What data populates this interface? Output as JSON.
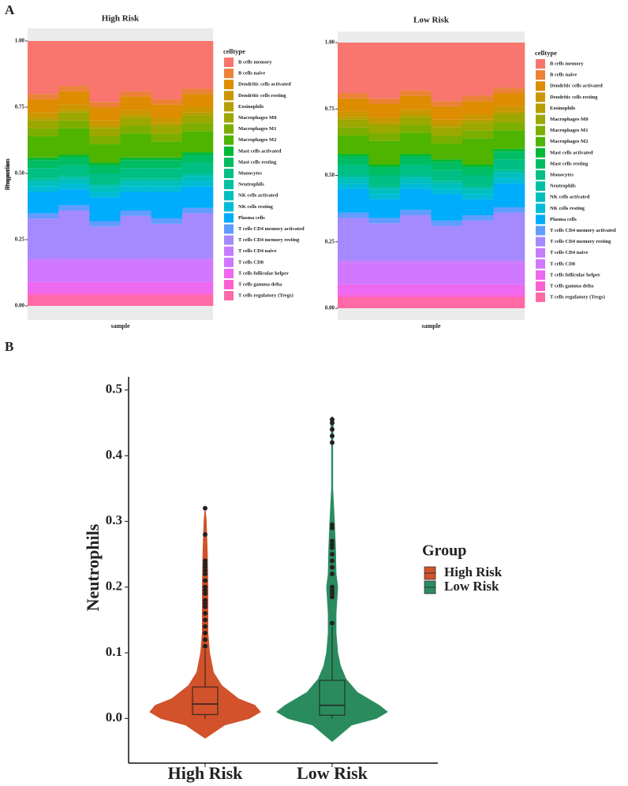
{
  "panel_labels": [
    "A",
    "B"
  ],
  "chart_data": [
    {
      "type": "stacked_bar",
      "title": "High Risk",
      "x_label": "sample",
      "y_label": "Proportion",
      "legend_title": "celltype",
      "categories": [
        null,
        null,
        null,
        null,
        null,
        null
      ],
      "ylim": [
        0,
        1
      ],
      "yticks": [
        {
          "value": 0,
          "label": "0.00"
        },
        0.25,
        {
          "value": 0.5,
          "label": "0.50"
        },
        0.75,
        {
          "value": 1,
          "label": "1.00"
        }
      ],
      "series": [
        {
          "name": "B cells memory",
          "color": "#F8766D",
          "values": [
            0.2,
            0.17,
            0.23,
            0.19,
            0.22,
            0.18
          ]
        },
        {
          "name": "B cells naive",
          "color": "#EC8239",
          "values": [
            0.02,
            0.02,
            0.02,
            0.02,
            0.02,
            0.02
          ]
        },
        {
          "name": "Dendritic cells activated",
          "color": "#DE8C00",
          "values": [
            0.05,
            0.05,
            0.05,
            0.05,
            0.05,
            0.05
          ]
        },
        {
          "name": "Dendritic cells resting",
          "color": "#CC9600",
          "values": [
            0.02,
            0.02,
            0.02,
            0.02,
            0.02,
            0.02
          ]
        },
        {
          "name": "Eosinophils",
          "color": "#B69F00",
          "values": [
            0.01,
            0.01,
            0.01,
            0.01,
            0.01,
            0.01
          ]
        },
        {
          "name": "Macrophages M0",
          "color": "#9CA700",
          "values": [
            0.03,
            0.03,
            0.03,
            0.03,
            0.03,
            0.03
          ]
        },
        {
          "name": "Macrophages M1",
          "color": "#7CAE00",
          "values": [
            0.03,
            0.03,
            0.03,
            0.03,
            0.03,
            0.03
          ]
        },
        {
          "name": "Macrophages M2",
          "color": "#4EB400",
          "values": [
            0.08,
            0.1,
            0.07,
            0.09,
            0.06,
            0.08
          ]
        },
        {
          "name": "Mast cells activated",
          "color": "#00B935",
          "values": [
            0.01,
            0.01,
            0.01,
            0.01,
            0.01,
            0.01
          ]
        },
        {
          "name": "Mast cells resting",
          "color": "#00BC62",
          "values": [
            0.03,
            0.03,
            0.03,
            0.03,
            0.03,
            0.03
          ]
        },
        {
          "name": "Monocytes",
          "color": "#00BF84",
          "values": [
            0.04,
            0.04,
            0.04,
            0.04,
            0.04,
            0.04
          ]
        },
        {
          "name": "Neutrophils",
          "color": "#00C0A3",
          "values": [
            0.01,
            0.01,
            0.01,
            0.01,
            0.01,
            0.01
          ]
        },
        {
          "name": "NK cells activated",
          "color": "#00C0BE",
          "values": [
            0.02,
            0.02,
            0.02,
            0.02,
            0.02,
            0.02
          ]
        },
        {
          "name": "NK cells resting",
          "color": "#00BCD6",
          "values": [
            0.02,
            0.02,
            0.02,
            0.02,
            0.02,
            0.02
          ]
        },
        {
          "name": "Plasma cells",
          "color": "#00ACFC",
          "values": [
            0.08,
            0.06,
            0.09,
            0.07,
            0.1,
            0.08
          ]
        },
        {
          "name": "T cells CD4 memory activated",
          "color": "#619CFF",
          "values": [
            0.02,
            0.02,
            0.02,
            0.02,
            0.02,
            0.02
          ]
        },
        {
          "name": "T cells CD4 memory resting",
          "color": "#A58AFF",
          "values": [
            0.15,
            0.18,
            0.12,
            0.16,
            0.13,
            0.17
          ]
        },
        {
          "name": "T cells CD4 naive",
          "color": "#C77CFF",
          "values": [
            0.01,
            0.01,
            0.01,
            0.01,
            0.01,
            0.01
          ]
        },
        {
          "name": "T cells CD8",
          "color": "#D078FF",
          "values": [
            0.08,
            0.08,
            0.08,
            0.08,
            0.08,
            0.08
          ]
        },
        {
          "name": "T cells follicular helper",
          "color": "#EE68F0",
          "values": [
            0.04,
            0.04,
            0.04,
            0.04,
            0.04,
            0.04
          ]
        },
        {
          "name": "T cells gamma delta",
          "color": "#FD61D1",
          "values": [
            0.01,
            0.01,
            0.01,
            0.01,
            0.01,
            0.01
          ]
        },
        {
          "name": "T cells regulatory (Tregs)",
          "color": "#FF6AA6",
          "values": [
            0.04,
            0.04,
            0.04,
            0.04,
            0.04,
            0.04
          ]
        }
      ]
    },
    {
      "type": "stacked_bar",
      "title": "Low Risk",
      "x_label": "sample",
      "y_label": "Proportion",
      "legend_title": "celltype",
      "categories": [
        null,
        null,
        null,
        null,
        null,
        null
      ],
      "ylim": [
        0,
        1
      ],
      "yticks": [
        {
          "value": 0,
          "label": "0.00"
        },
        0.25,
        {
          "value": 0.5,
          "label": "0.50"
        },
        0.75,
        {
          "value": 1,
          "label": "1.00"
        }
      ],
      "series": [
        {
          "name": "B cells memory",
          "color": "#F8766D",
          "values": [
            0.19,
            0.21,
            0.18,
            0.22,
            0.2,
            0.17
          ]
        },
        {
          "name": "B cells naive",
          "color": "#EC8239",
          "values": [
            0.02,
            0.02,
            0.02,
            0.02,
            0.02,
            0.02
          ]
        },
        {
          "name": "Dendritic cells activated",
          "color": "#DE8C00",
          "values": [
            0.05,
            0.05,
            0.05,
            0.05,
            0.05,
            0.05
          ]
        },
        {
          "name": "Dendritic cells resting",
          "color": "#CC9600",
          "values": [
            0.02,
            0.02,
            0.02,
            0.02,
            0.02,
            0.02
          ]
        },
        {
          "name": "Eosinophils",
          "color": "#B69F00",
          "values": [
            0.01,
            0.01,
            0.01,
            0.01,
            0.01,
            0.01
          ]
        },
        {
          "name": "Macrophages M0",
          "color": "#9CA700",
          "values": [
            0.03,
            0.03,
            0.03,
            0.03,
            0.03,
            0.03
          ]
        },
        {
          "name": "Macrophages M1",
          "color": "#7CAE00",
          "values": [
            0.03,
            0.03,
            0.03,
            0.03,
            0.03,
            0.03
          ]
        },
        {
          "name": "Macrophages M2",
          "color": "#4EB400",
          "values": [
            0.07,
            0.09,
            0.08,
            0.06,
            0.1,
            0.07
          ]
        },
        {
          "name": "Mast cells activated",
          "color": "#00B935",
          "values": [
            0.01,
            0.01,
            0.01,
            0.01,
            0.01,
            0.01
          ]
        },
        {
          "name": "Mast cells resting",
          "color": "#00BC62",
          "values": [
            0.03,
            0.03,
            0.03,
            0.03,
            0.03,
            0.03
          ]
        },
        {
          "name": "Monocytes",
          "color": "#00BF84",
          "values": [
            0.04,
            0.04,
            0.04,
            0.04,
            0.04,
            0.04
          ]
        },
        {
          "name": "Neutrophils",
          "color": "#00C0A3",
          "values": [
            0.01,
            0.01,
            0.01,
            0.01,
            0.01,
            0.01
          ]
        },
        {
          "name": "NK cells activated",
          "color": "#00C0BE",
          "values": [
            0.02,
            0.02,
            0.02,
            0.02,
            0.02,
            0.02
          ]
        },
        {
          "name": "NK cells resting",
          "color": "#00BCD6",
          "values": [
            0.02,
            0.02,
            0.02,
            0.02,
            0.02,
            0.02
          ]
        },
        {
          "name": "Plasma cells",
          "color": "#00ACFC",
          "values": [
            0.09,
            0.07,
            0.08,
            0.1,
            0.06,
            0.09
          ]
        },
        {
          "name": "T cells CD4 memory activated",
          "color": "#619CFF",
          "values": [
            0.02,
            0.02,
            0.02,
            0.02,
            0.02,
            0.02
          ]
        },
        {
          "name": "T cells CD4 memory resting",
          "color": "#A58AFF",
          "values": [
            0.16,
            0.14,
            0.17,
            0.13,
            0.15,
            0.18
          ]
        },
        {
          "name": "T cells CD4 naive",
          "color": "#C77CFF",
          "values": [
            0.01,
            0.01,
            0.01,
            0.01,
            0.01,
            0.01
          ]
        },
        {
          "name": "T cells CD8",
          "color": "#D078FF",
          "values": [
            0.08,
            0.08,
            0.08,
            0.08,
            0.08,
            0.08
          ]
        },
        {
          "name": "T cells follicular helper",
          "color": "#EE68F0",
          "values": [
            0.04,
            0.04,
            0.04,
            0.04,
            0.04,
            0.04
          ]
        },
        {
          "name": "T cells gamma delta",
          "color": "#FD61D1",
          "values": [
            0.01,
            0.01,
            0.01,
            0.01,
            0.01,
            0.01
          ]
        },
        {
          "name": "T cells regulatory (Tregs)",
          "color": "#FF6AA6",
          "values": [
            0.04,
            0.04,
            0.04,
            0.04,
            0.04,
            0.04
          ]
        }
      ]
    },
    {
      "type": "violin",
      "y_label": "Neutrophils",
      "legend_title": "Group",
      "categories": [
        "High Risk",
        "Low Risk"
      ],
      "ylim": [
        -0.068,
        0.52
      ],
      "yticks": [
        {
          "value": 0,
          "label": "0.0"
        },
        0.1,
        0.2,
        0.3,
        0.4,
        0.5
      ],
      "series": [
        {
          "name": "High Risk",
          "color": "#D2522B",
          "density_y": [
            -0.03,
            -0.01,
            0,
            0.01,
            0.02,
            0.03,
            0.05,
            0.07,
            0.1,
            0.13,
            0.16,
            0.2,
            0.25,
            0.3,
            0.32
          ],
          "density": [
            0,
            0.35,
            0.8,
            1,
            0.9,
            0.6,
            0.3,
            0.15,
            0.08,
            0.05,
            0.05,
            0.05,
            0.04,
            0.02,
            0
          ],
          "whisker_low": 0,
          "q1": 0.006,
          "median": 0.022,
          "q3": 0.048,
          "whisker_high": 0.105,
          "outliers": [
            0.32,
            0.28,
            0.24,
            0.235,
            0.23,
            0.225,
            0.22,
            0.21,
            0.2,
            0.195,
            0.19,
            0.18,
            0.175,
            0.17,
            0.16,
            0.15,
            0.14,
            0.13,
            0.12,
            0.11
          ]
        },
        {
          "name": "Low Risk",
          "color": "#2A8C5E",
          "density_y": [
            -0.035,
            -0.01,
            0,
            0.01,
            0.02,
            0.04,
            0.06,
            0.08,
            0.1,
            0.13,
            0.16,
            0.2,
            0.22,
            0.26,
            0.3,
            0.35,
            0.42,
            0.45,
            0.46
          ],
          "density": [
            0,
            0.35,
            0.8,
            1,
            0.85,
            0.45,
            0.25,
            0.15,
            0.1,
            0.07,
            0.07,
            0.1,
            0.07,
            0.06,
            0.04,
            0.01,
            0.01,
            0.02,
            0
          ],
          "whisker_low": 0,
          "q1": 0.005,
          "median": 0.02,
          "q3": 0.058,
          "whisker_high": 0.14,
          "outliers": [
            0.455,
            0.45,
            0.44,
            0.43,
            0.42,
            0.295,
            0.29,
            0.27,
            0.265,
            0.26,
            0.25,
            0.24,
            0.23,
            0.22,
            0.2,
            0.195,
            0.19,
            0.185,
            0.145
          ]
        }
      ]
    }
  ]
}
